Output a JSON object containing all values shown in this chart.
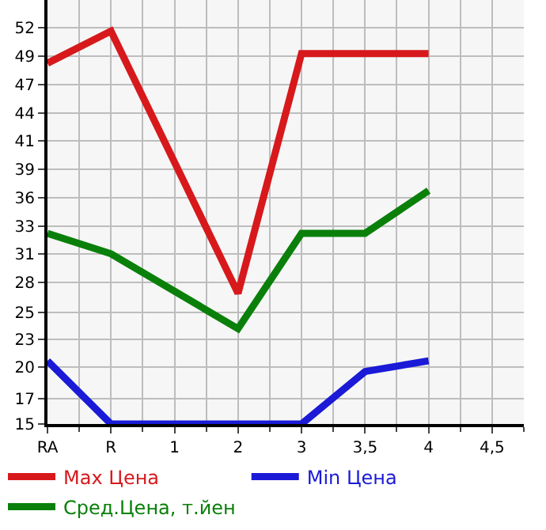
{
  "chart_data": {
    "type": "line",
    "categories": [
      "RA",
      "R",
      "1",
      "2",
      "3",
      "3,5",
      "4",
      "4,5"
    ],
    "series": [
      {
        "name": "Max Цена",
        "color": "#d7191c",
        "values": [
          48.7,
          51.7,
          null,
          27.2,
          49.6,
          49.6,
          49.6,
          null
        ]
      },
      {
        "name": "Min Цена",
        "color": "#1a1ad7",
        "values": [
          20.9,
          15,
          null,
          15,
          15,
          19.9,
          20.9,
          null
        ]
      },
      {
        "name": "Сред.Цена, т.йен",
        "color": "#0a800a",
        "values": [
          32.8,
          30.9,
          null,
          23.9,
          32.8,
          32.8,
          36.8,
          null
        ]
      }
    ],
    "ylim": [
      15,
      54.6
    ],
    "yticks": [
      {
        "value": 15,
        "label": "15"
      },
      {
        "value": 17.4,
        "label": "17"
      },
      {
        "value": 20.29,
        "label": "20"
      },
      {
        "value": 22.93,
        "label": "23"
      },
      {
        "value": 25.4,
        "label": "25"
      },
      {
        "value": 28.21,
        "label": "28"
      },
      {
        "value": 30.86,
        "label": "31"
      },
      {
        "value": 33.5,
        "label": "33"
      },
      {
        "value": 36.14,
        "label": "36"
      },
      {
        "value": 38.79,
        "label": "39"
      },
      {
        "value": 41.43,
        "label": "41"
      },
      {
        "value": 44.07,
        "label": "44"
      },
      {
        "value": 46.71,
        "label": "47"
      },
      {
        "value": 49.36,
        "label": "49"
      },
      {
        "value": 52,
        "label": "52"
      }
    ],
    "grid": true,
    "legend": "bottom",
    "marker": "none",
    "line_style": "solid"
  }
}
